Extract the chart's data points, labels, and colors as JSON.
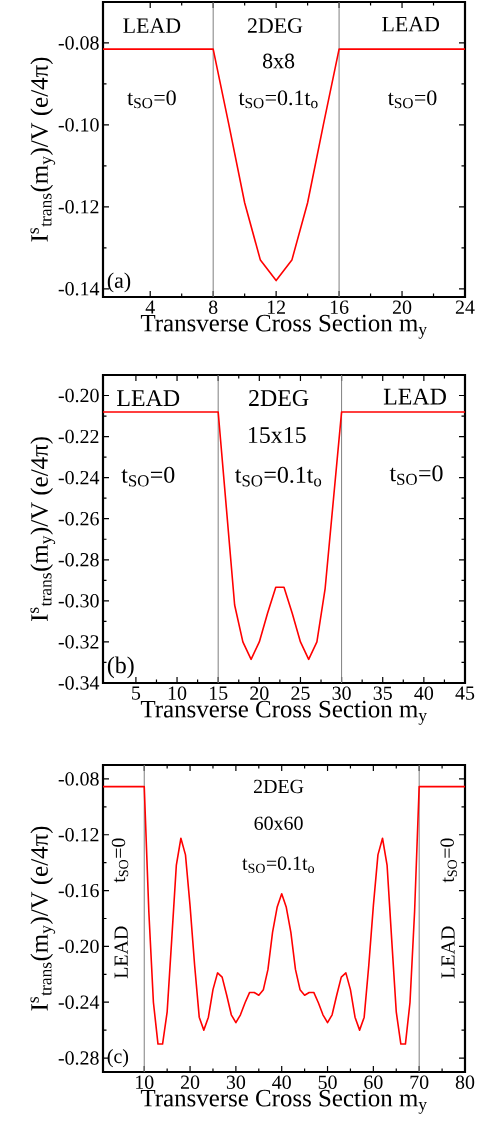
{
  "chart_data": [
    {
      "type": "line",
      "xlabel": "Transverse Cross Section m$_{y}$",
      "ylabel": "I$^{s}$$_{trans}$(m$_{y}$)/V  (e/4π)",
      "xlim": [
        1,
        24
      ],
      "xticks": [
        4,
        8,
        12,
        16,
        20,
        24
      ],
      "ylim": [
        -0.142,
        -0.07
      ],
      "yticks": [
        -0.14,
        -0.12,
        {
          "value": -0.1,
          "label": "-0.10"
        },
        -0.08
      ],
      "grid": false,
      "marker": "none",
      "line_style": "solid",
      "series": [
        {
          "color": "#ff0000",
          "x": [
            1,
            8,
            9,
            10,
            11,
            12,
            13,
            14,
            15,
            16,
            24
          ],
          "values": [
            -0.0815,
            -0.0815,
            -0.1,
            -0.119,
            -0.133,
            -0.138,
            -0.133,
            -0.119,
            -0.1,
            -0.0815,
            -0.0815
          ]
        }
      ],
      "ref_lines": [
        {
          "axis": "x",
          "value": 8,
          "color": "#808080"
        },
        {
          "axis": "x",
          "value": 16,
          "color": "#808080"
        }
      ],
      "annotations": [
        "LEAD",
        "2DEG",
        "8x8",
        "t$_{SO}$=0",
        "t$_{SO}$=0.1t$_{o}$",
        "LEAD",
        "t$_{SO}$=0",
        "(a)"
      ]
    },
    {
      "type": "line",
      "xlabel": "Transverse Cross Section m$_{y}$",
      "ylabel": "I$^{s}$$_{trans}$(m$_{y}$)/V  (e/4π)",
      "xlim": [
        1,
        45
      ],
      "xticks": [
        5,
        10,
        15,
        20,
        25,
        30,
        35,
        40,
        45
      ],
      "ylim": [
        -0.34,
        -0.19
      ],
      "yticks": [
        -0.34,
        -0.32,
        {
          "value": -0.3,
          "label": "-0.30"
        },
        -0.28,
        -0.26,
        -0.24,
        -0.22,
        {
          "value": -0.2,
          "label": "-0.20"
        }
      ],
      "grid": false,
      "marker": "none",
      "line_style": "solid",
      "series": [
        {
          "color": "#ff0000",
          "x": [
            1,
            15,
            16,
            17,
            18,
            19,
            20,
            21,
            22,
            23,
            24,
            25,
            26,
            27,
            28,
            29,
            30,
            45
          ],
          "values": [
            -0.208,
            -0.208,
            -0.255,
            -0.302,
            -0.32,
            -0.3285,
            -0.32,
            -0.306,
            -0.2934,
            -0.2934,
            -0.306,
            -0.32,
            -0.3285,
            -0.32,
            -0.294,
            -0.251,
            -0.208,
            -0.208
          ]
        }
      ],
      "ref_lines": [
        {
          "axis": "x",
          "value": 15,
          "color": "#808080"
        },
        {
          "axis": "x",
          "value": 30,
          "color": "#808080"
        }
      ],
      "annotations": [
        "LEAD",
        "2DEG",
        "15x15",
        "t$_{SO}$=0",
        "t$_{SO}$=0.1t$_{o}$",
        "LEAD",
        "t$_{SO}$=0",
        "(b)"
      ]
    },
    {
      "type": "line",
      "xlabel": "Transverse Cross Section m$_{y}$",
      "ylabel": "I$^{s}$$_{trans}$(m$_{y}$)/V  (e/4π)",
      "xlim": [
        1,
        80
      ],
      "xticks": [
        10,
        20,
        30,
        40,
        50,
        60,
        70,
        80
      ],
      "ylim": [
        -0.29,
        -0.07
      ],
      "yticks": [
        -0.28,
        -0.24,
        {
          "value": -0.2,
          "label": "-0.20"
        },
        -0.16,
        -0.12,
        -0.08
      ],
      "grid": false,
      "marker": "none",
      "line_style": "solid",
      "series": [
        {
          "color": "#ff0000",
          "x": [
            1,
            10,
            11,
            12,
            13,
            14,
            15,
            16,
            17,
            18,
            19,
            20,
            21,
            22,
            23,
            24,
            25,
            26,
            27,
            28,
            29,
            30,
            31,
            32,
            33,
            34,
            35,
            36,
            37,
            38,
            39,
            40,
            41,
            42,
            43,
            44,
            45,
            46,
            47,
            48,
            49,
            50,
            51,
            52,
            53,
            54,
            55,
            56,
            57,
            58,
            59,
            60,
            61,
            62,
            63,
            64,
            65,
            66,
            67,
            68,
            69,
            70,
            80
          ],
          "values": [
            -0.0855,
            -0.0855,
            -0.175,
            -0.24,
            -0.27,
            -0.27,
            -0.247,
            -0.195,
            -0.142,
            -0.1225,
            -0.1344,
            -0.171,
            -0.2137,
            -0.2507,
            -0.26,
            -0.2507,
            -0.231,
            -0.219,
            -0.222,
            -0.235,
            -0.249,
            -0.2547,
            -0.249,
            -0.2404,
            -0.233,
            -0.233,
            -0.235,
            -0.231,
            -0.2165,
            -0.19,
            -0.172,
            -0.1623,
            -0.172,
            -0.19,
            -0.2165,
            -0.231,
            -0.235,
            -0.233,
            -0.233,
            -0.2404,
            -0.249,
            -0.2547,
            -0.249,
            -0.235,
            -0.222,
            -0.219,
            -0.231,
            -0.2507,
            -0.26,
            -0.2507,
            -0.2137,
            -0.171,
            -0.1344,
            -0.1225,
            -0.142,
            -0.195,
            -0.247,
            -0.27,
            -0.27,
            -0.24,
            -0.175,
            -0.0855,
            -0.0855
          ]
        }
      ],
      "ref_lines": [
        {
          "axis": "x",
          "value": 10,
          "color": "#808080"
        },
        {
          "axis": "x",
          "value": 70,
          "color": "#808080"
        }
      ],
      "annotations": [
        "2DEG",
        "60x60",
        "t$_{SO}$=0.1t$_{o}$",
        "LEAD",
        "t$_{SO}$=0",
        "LEAD",
        "t$_{SO}$=0",
        "(c)"
      ]
    }
  ]
}
